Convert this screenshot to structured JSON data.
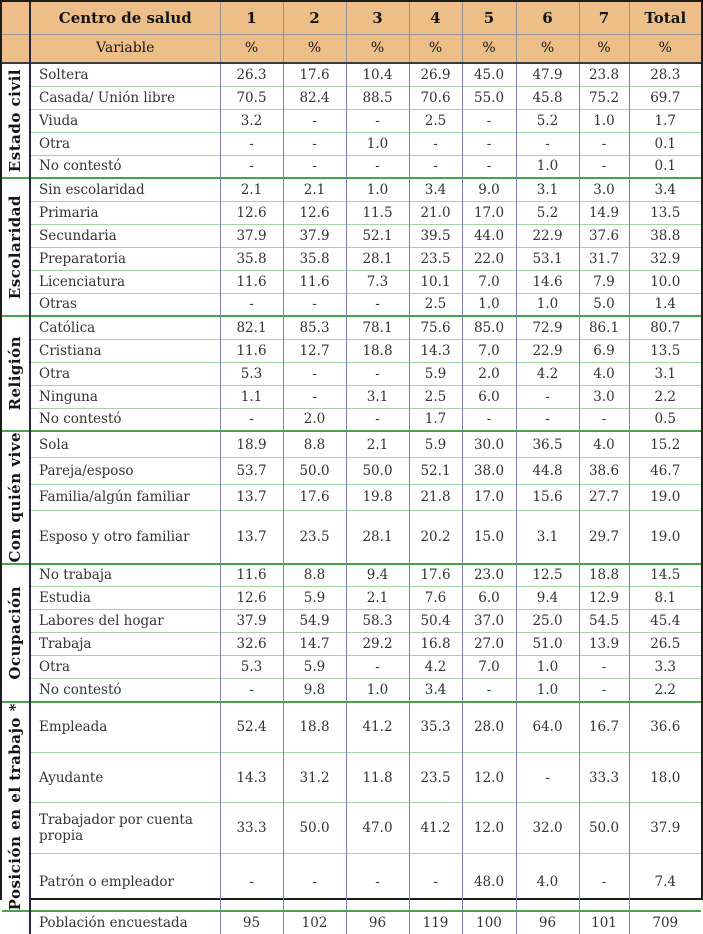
{
  "colors": {
    "header_bg": "#edbe87",
    "vertical_grid": "#7f7fb4",
    "row_grid": "#a5d3a5",
    "group_grid": "#46a24b",
    "outer_border": "#1c1c1c",
    "text": "#333333"
  },
  "table": {
    "header": {
      "corner_label": "Centro de salud",
      "variable_label": "Variable",
      "percent_symbol": "%",
      "columns": [
        "1",
        "2",
        "3",
        "4",
        "5",
        "6",
        "7",
        "Total"
      ]
    },
    "groups": [
      {
        "label": "Estado civil",
        "rows": [
          {
            "variable": "Soltera",
            "values": [
              "26.3",
              "17.6",
              "10.4",
              "26.9",
              "45.0",
              "47.9",
              "23.8",
              "28.3"
            ]
          },
          {
            "variable": "Casada/ Unión libre",
            "values": [
              "70.5",
              "82.4",
              "88.5",
              "70.6",
              "55.0",
              "45.8",
              "75.2",
              "69.7"
            ]
          },
          {
            "variable": "Viuda",
            "values": [
              "3.2",
              "-",
              "-",
              "2.5",
              "-",
              "5.2",
              "1.0",
              "1.7"
            ]
          },
          {
            "variable": "Otra",
            "values": [
              "-",
              "-",
              "1.0",
              "-",
              "-",
              "-",
              "-",
              "0.1"
            ]
          },
          {
            "variable": "No contestó",
            "values": [
              "-",
              "-",
              "-",
              "-",
              "-",
              "1.0",
              "-",
              "0.1"
            ]
          }
        ]
      },
      {
        "label": "Escolaridad",
        "rows": [
          {
            "variable": "Sin escolaridad",
            "values": [
              "2.1",
              "2.1",
              "1.0",
              "3.4",
              "9.0",
              "3.1",
              "3.0",
              "3.4"
            ]
          },
          {
            "variable": "Primaria",
            "values": [
              "12.6",
              "12.6",
              "11.5",
              "21.0",
              "17.0",
              "5.2",
              "14.9",
              "13.5"
            ]
          },
          {
            "variable": "Secundaria",
            "values": [
              "37.9",
              "37.9",
              "52.1",
              "39.5",
              "44.0",
              "22.9",
              "37.6",
              "38.8"
            ]
          },
          {
            "variable": "Preparatoria",
            "values": [
              "35.8",
              "35.8",
              "28.1",
              "23.5",
              "22.0",
              "53.1",
              "31.7",
              "32.9"
            ]
          },
          {
            "variable": "Licenciatura",
            "values": [
              "11.6",
              "11.6",
              "7.3",
              "10.1",
              "7.0",
              "14.6",
              "7.9",
              "10.0"
            ]
          },
          {
            "variable": "Otras",
            "values": [
              "-",
              "-",
              "-",
              "2.5",
              "1.0",
              "1.0",
              "5.0",
              "1.4"
            ]
          }
        ]
      },
      {
        "label": "Religión",
        "rows": [
          {
            "variable": "Católica",
            "values": [
              "82.1",
              "85.3",
              "78.1",
              "75.6",
              "85.0",
              "72.9",
              "86.1",
              "80.7"
            ]
          },
          {
            "variable": "Cristiana",
            "values": [
              "11.6",
              "12.7",
              "18.8",
              "14.3",
              "7.0",
              "22.9",
              "6.9",
              "13.5"
            ]
          },
          {
            "variable": "Otra",
            "values": [
              "5.3",
              "-",
              "-",
              "5.9",
              "2.0",
              "4.2",
              "4.0",
              "3.1"
            ]
          },
          {
            "variable": "Ninguna",
            "values": [
              "1.1",
              "-",
              "3.1",
              "2.5",
              "6.0",
              "-",
              "3.0",
              "2.2"
            ]
          },
          {
            "variable": "No contestó",
            "values": [
              "-",
              "2.0",
              "-",
              "1.7",
              "-",
              "-",
              "-",
              "0.5"
            ]
          }
        ]
      },
      {
        "label": "Con quién vive",
        "rows": [
          {
            "variable": "Sola",
            "values": [
              "18.9",
              "8.8",
              "2.1",
              "5.9",
              "30.0",
              "36.5",
              "4.0",
              "15.2"
            ]
          },
          {
            "variable": "Pareja/esposo",
            "values": [
              "53.7",
              "50.0",
              "50.0",
              "52.1",
              "38.0",
              "44.8",
              "38.6",
              "46.7"
            ]
          },
          {
            "variable": "Familia/algún familiar",
            "values": [
              "13.7",
              "17.6",
              "19.8",
              "21.8",
              "17.0",
              "15.6",
              "27.7",
              "19.0"
            ]
          },
          {
            "variable": "Esposo y otro familiar",
            "size": "tall",
            "values": [
              "13.7",
              "23.5",
              "28.1",
              "20.2",
              "15.0",
              "3.1",
              "29.7",
              "19.0"
            ]
          }
        ]
      },
      {
        "label": "Ocupación",
        "rows": [
          {
            "variable": "No trabaja",
            "values": [
              "11.6",
              "8.8",
              "9.4",
              "17.6",
              "23.0",
              "12.5",
              "18.8",
              "14.5"
            ]
          },
          {
            "variable": "Estudia",
            "values": [
              "12.6",
              "5.9",
              "2.1",
              "7.6",
              "6.0",
              "9.4",
              "12.9",
              "8.1"
            ]
          },
          {
            "variable": "Labores del hogar",
            "values": [
              "37.9",
              "54.9",
              "58.3",
              "50.4",
              "37.0",
              "25.0",
              "54.5",
              "45.4"
            ]
          },
          {
            "variable": "Trabaja",
            "values": [
              "32.6",
              "14.7",
              "29.2",
              "16.8",
              "27.0",
              "51.0",
              "13.9",
              "26.5"
            ]
          },
          {
            "variable": "Otra",
            "values": [
              "5.3",
              "5.9",
              "-",
              "4.2",
              "7.0",
              "1.0",
              "-",
              "3.3"
            ]
          },
          {
            "variable": "No contestó",
            "values": [
              "-",
              "9.8",
              "1.0",
              "3.4",
              "-",
              "1.0",
              "-",
              "2.2"
            ]
          }
        ]
      },
      {
        "label": "Posición en el trabajo *",
        "rows": [
          {
            "variable": "Empleada",
            "size": "tall",
            "values": [
              "52.4",
              "18.8",
              "41.2",
              "35.3",
              "28.0",
              "64.0",
              "16.7",
              "36.6"
            ]
          },
          {
            "variable": "Ayudante",
            "size": "tall",
            "values": [
              "14.3",
              "31.2",
              "11.8",
              "23.5",
              "12.0",
              "-",
              "33.3",
              "18.0"
            ]
          },
          {
            "variable": "Trabajador por cuenta propia",
            "size": "tall",
            "values": [
              "33.3",
              "50.0",
              "47.0",
              "41.2",
              "12.0",
              "32.0",
              "50.0",
              "37.9"
            ]
          },
          {
            "variable": "Patrón o empleador",
            "size": "xtall",
            "values": [
              "-",
              "-",
              "-",
              "-",
              "48.0",
              "4.0",
              "-",
              "7.4"
            ]
          }
        ]
      }
    ],
    "footer": {
      "variable": "Población encuestada",
      "values": [
        "95",
        "102",
        "96",
        "119",
        "100",
        "96",
        "101",
        "709"
      ]
    }
  }
}
